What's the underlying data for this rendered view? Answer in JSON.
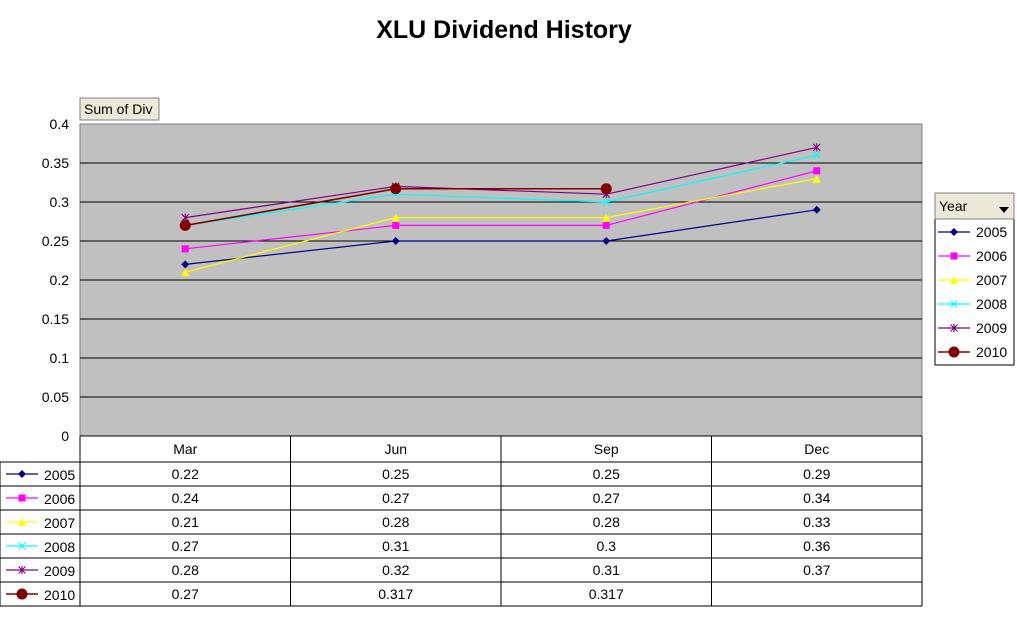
{
  "chart_data": {
    "type": "line",
    "title": "XLU Dividend History",
    "field_button": "Sum of Div",
    "legend_title": "Year",
    "categories": [
      "Mar",
      "Jun",
      "Sep",
      "Dec"
    ],
    "ylim": [
      0,
      0.4
    ],
    "y_ticks": [
      "0",
      "0.05",
      "0.1",
      "0.15",
      "0.2",
      "0.25",
      "0.3",
      "0.35",
      "0.4"
    ],
    "grid": true,
    "legend_position": "right",
    "plot_background": "#c0c0c0",
    "series": [
      {
        "name": "2005",
        "color": "#000080",
        "marker": "diamond",
        "values": [
          0.22,
          0.25,
          0.25,
          0.29
        ],
        "labels": [
          "0.22",
          "0.25",
          "0.25",
          "0.29"
        ]
      },
      {
        "name": "2006",
        "color": "#ff00ff",
        "marker": "square",
        "values": [
          0.24,
          0.27,
          0.27,
          0.34
        ],
        "labels": [
          "0.24",
          "0.27",
          "0.27",
          "0.34"
        ]
      },
      {
        "name": "2007",
        "color": "#ffff00",
        "marker": "triangle",
        "values": [
          0.21,
          0.28,
          0.28,
          0.33
        ],
        "labels": [
          "0.21",
          "0.28",
          "0.28",
          "0.33"
        ]
      },
      {
        "name": "2008",
        "color": "#00ffff",
        "marker": "x",
        "values": [
          0.27,
          0.31,
          0.3,
          0.36
        ],
        "labels": [
          "0.27",
          "0.31",
          "0.3",
          "0.36"
        ]
      },
      {
        "name": "2009",
        "color": "#800080",
        "marker": "star",
        "values": [
          0.28,
          0.32,
          0.31,
          0.37
        ],
        "labels": [
          "0.28",
          "0.32",
          "0.31",
          "0.37"
        ]
      },
      {
        "name": "2010",
        "color": "#800000",
        "marker": "circle",
        "values": [
          0.27,
          0.317,
          0.317,
          null
        ],
        "labels": [
          "0.27",
          "0.317",
          "0.317",
          ""
        ]
      }
    ]
  }
}
